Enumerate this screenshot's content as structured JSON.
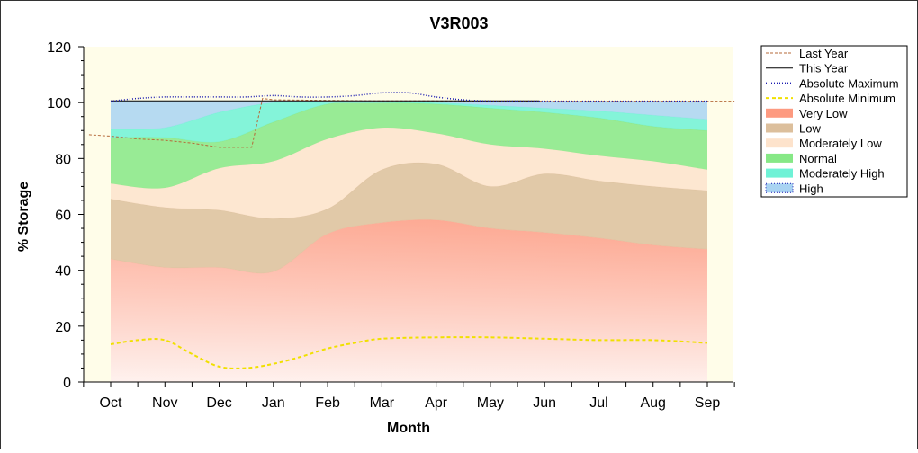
{
  "chart_data": {
    "type": "area",
    "title": "V3R003",
    "xlabel": "Month",
    "ylabel": "% Storage",
    "ylim": [
      0,
      120
    ],
    "yticks": [
      0,
      20,
      40,
      60,
      80,
      100,
      120
    ],
    "categories": [
      "Oct",
      "Nov",
      "Dec",
      "Jan",
      "Feb",
      "Mar",
      "Apr",
      "May",
      "Jun",
      "Jul",
      "Aug",
      "Sep"
    ],
    "legend_position": "top-right",
    "band_colors": {
      "very_low": "#fd9a80",
      "low": "#dcbf9c",
      "moderately_low": "#fde3cc",
      "normal": "#86e886",
      "moderately_high": "#6ff2d6",
      "high": "#a9d3f2"
    },
    "line_colors": {
      "last_year": "#b5693a",
      "this_year": "#000000",
      "absolute_maximum": "#1a1ab0",
      "absolute_minimum": "#f0e000"
    },
    "bands": {
      "very_low_top": [
        44,
        41,
        41,
        39.5,
        53,
        57,
        58,
        55,
        53.5,
        51.5,
        49,
        47.5
      ],
      "low_top": [
        65.5,
        62.5,
        61.5,
        58.5,
        62,
        76,
        78,
        70,
        74.5,
        72,
        70,
        68.5
      ],
      "moderately_low_top": [
        71,
        69.5,
        76.5,
        79,
        87,
        91,
        89,
        85,
        83.5,
        81,
        79,
        76
      ],
      "normal_top": [
        87.5,
        87.5,
        86,
        93,
        99.5,
        100,
        99.5,
        98,
        96.5,
        94.5,
        91.5,
        90
      ],
      "moderately_high_top": [
        90.5,
        91,
        96.5,
        100,
        100,
        100,
        100,
        99,
        98,
        97,
        95.5,
        94
      ],
      "high_top": [
        100.5,
        100.5,
        100.5,
        100.5,
        100.5,
        100.5,
        100.5,
        100.5,
        100.5,
        100.5,
        100.5,
        100.5
      ]
    },
    "series": [
      {
        "name": "Last Year",
        "x": [
          -0.4,
          0,
          0.5,
          1,
          1.5,
          2,
          2.6,
          2.8,
          3,
          4,
          5,
          6,
          7,
          8,
          9,
          10,
          11,
          11.5
        ],
        "values": [
          88.5,
          88,
          87,
          86.5,
          85.5,
          84,
          84,
          101.5,
          101,
          100.8,
          100.6,
          100.6,
          100.5,
          100.5,
          100.5,
          100.5,
          100.5,
          100.5
        ]
      },
      {
        "name": "This Year",
        "x": [
          0,
          0.5,
          1,
          2,
          3,
          4,
          5,
          6,
          7,
          7.9
        ],
        "values": [
          100.6,
          100.6,
          100.6,
          100.6,
          100.6,
          100.6,
          100.6,
          100.6,
          100.6,
          100.6
        ]
      },
      {
        "name": "Absolute Maximum",
        "x": [
          0,
          0.5,
          1,
          1.5,
          2,
          2.5,
          3,
          3.5,
          4,
          4.5,
          5,
          5.5,
          6,
          6.5,
          7,
          7.5,
          8,
          9,
          10,
          11
        ],
        "values": [
          100.5,
          101.5,
          102,
          102,
          102,
          102,
          102.5,
          102,
          102,
          102.5,
          103.5,
          103.5,
          102,
          101,
          100.5,
          100.5,
          100.5,
          100.5,
          100.5,
          100.5
        ]
      },
      {
        "name": "Absolute Minimum",
        "x": [
          0,
          0.5,
          1,
          1.5,
          2,
          2.5,
          3,
          3.5,
          4,
          4.5,
          5,
          6,
          7,
          8,
          9,
          10,
          11
        ],
        "values": [
          13.5,
          15,
          15,
          10,
          5.5,
          5,
          6.5,
          9,
          12,
          14,
          15.5,
          16,
          16,
          15.5,
          15,
          15,
          14
        ]
      }
    ],
    "legend": [
      "Last Year",
      "This Year",
      "Absolute Maximum",
      "Absolute Minimum",
      "Very Low",
      "Low",
      "Moderately Low",
      "Normal",
      "Moderately High",
      "High"
    ]
  }
}
